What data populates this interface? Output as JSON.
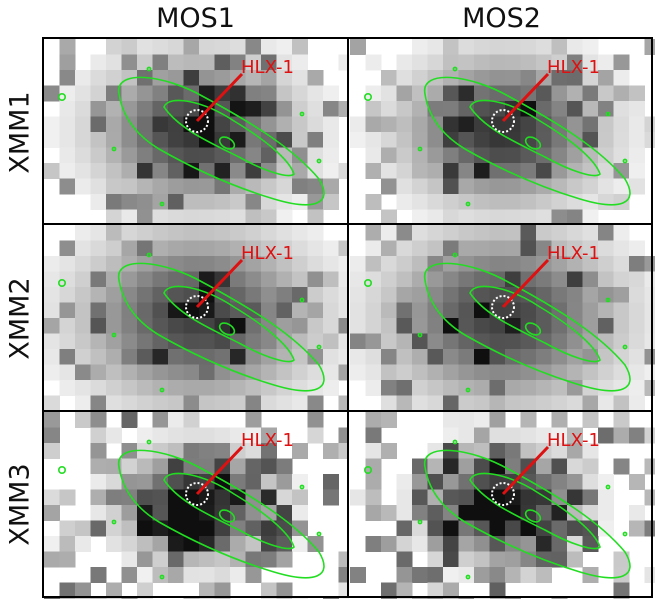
{
  "columns": [
    "MOS1",
    "MOS2"
  ],
  "rows": [
    "XMM1",
    "XMM2",
    "XMM3"
  ],
  "source_label": "HLX-1",
  "colors": {
    "contour": "#22dd22",
    "label": "#dd1111",
    "circle": "#ffffff",
    "frame": "#000000"
  }
}
